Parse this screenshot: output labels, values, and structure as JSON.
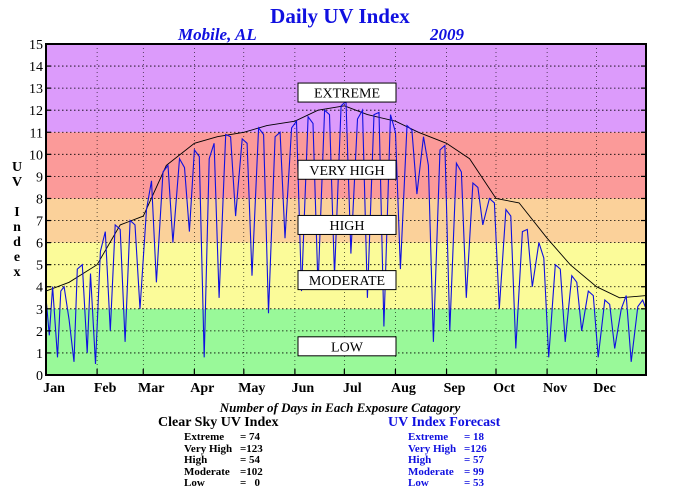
{
  "title": "Daily UV Index",
  "location": "Mobile, AL",
  "year": "2009",
  "y_axis_letters": [
    "U",
    "V",
    "",
    "I",
    "n",
    "d",
    "e",
    "x"
  ],
  "counts_title": "Number of Days in Each Exposure Catagory",
  "clear_sky": {
    "heading": "Clear Sky UV Index",
    "rows": [
      {
        "name": "Extreme",
        "value": "= 74"
      },
      {
        "name": "Very High",
        "value": "=123"
      },
      {
        "name": "High",
        "value": "= 54"
      },
      {
        "name": "Moderate",
        "value": "=102"
      },
      {
        "name": "Low",
        "value": "=   0"
      }
    ]
  },
  "forecast": {
    "heading": "UV Index Forecast",
    "rows": [
      {
        "name": "Extreme",
        "value": "= 18"
      },
      {
        "name": "Very High",
        "value": "=126"
      },
      {
        "name": "High",
        "value": "= 57"
      },
      {
        "name": "Moderate",
        "value": "= 99"
      },
      {
        "name": "Low",
        "value": "= 53"
      }
    ]
  },
  "colors": {
    "low": "#99f999",
    "moderate": "#fbfb99",
    "high": "#fbd19a",
    "very_high": "#fb9a99",
    "extreme": "#dc9bfb",
    "forecast_line": "#1010e0",
    "clear_line": "#000000"
  },
  "chart_data": {
    "type": "line",
    "ylim": [
      0,
      15
    ],
    "xlim": [
      1,
      365
    ],
    "yticks": [
      "0",
      "1",
      "2",
      "3",
      "4",
      "5",
      "6",
      "7",
      "8",
      "9",
      "10",
      "11",
      "12",
      "13",
      "14",
      "15"
    ],
    "months": [
      "Jan",
      "Feb",
      "Mar",
      "Apr",
      "May",
      "Jun",
      "Jul",
      "Aug",
      "Sep",
      "Oct",
      "Nov",
      "Dec"
    ],
    "month_start_days": [
      1,
      32,
      60,
      91,
      121,
      152,
      182,
      213,
      244,
      274,
      305,
      335
    ],
    "grid": true,
    "bands": [
      {
        "label": "LOW",
        "from": 0,
        "to": 3
      },
      {
        "label": "MODERATE",
        "from": 3,
        "to": 6
      },
      {
        "label": "HIGH",
        "from": 6,
        "to": 8
      },
      {
        "label": "VERY HIGH",
        "from": 8,
        "to": 11
      },
      {
        "label": "EXTREME",
        "from": 11,
        "to": 15
      }
    ],
    "band_label_y": {
      "EXTREME": 12.8,
      "VERY HIGH": 9.3,
      "HIGH": 6.8,
      "MODERATE": 4.3,
      "LOW": 1.3
    },
    "series": [
      {
        "key": "clear_sky",
        "x": [
          1,
          15,
          32,
          46,
          60,
          74,
          91,
          105,
          121,
          135,
          152,
          166,
          182,
          196,
          213,
          227,
          244,
          258,
          274,
          288,
          305,
          319,
          335,
          349,
          365
        ],
        "values": [
          3.8,
          4.2,
          5.0,
          6.8,
          7.2,
          9.5,
          10.5,
          10.8,
          11.0,
          11.3,
          11.5,
          12.0,
          12.2,
          11.8,
          11.5,
          11.0,
          10.5,
          9.8,
          8.0,
          7.8,
          6.2,
          5.0,
          4.0,
          3.5,
          3.6
        ]
      },
      {
        "key": "forecast",
        "x": [
          1,
          3,
          5,
          8,
          10,
          12,
          15,
          18,
          20,
          23,
          26,
          28,
          31,
          34,
          37,
          40,
          43,
          46,
          49,
          52,
          55,
          58,
          62,
          65,
          68,
          72,
          75,
          78,
          82,
          85,
          88,
          91,
          94,
          97,
          100,
          103,
          106,
          110,
          113,
          116,
          120,
          123,
          126,
          130,
          133,
          136,
          140,
          143,
          146,
          150,
          153,
          156,
          160,
          163,
          166,
          170,
          173,
          176,
          180,
          183,
          186,
          190,
          193,
          196,
          200,
          203,
          206,
          210,
          213,
          216,
          220,
          223,
          226,
          230,
          233,
          236,
          240,
          243,
          246,
          250,
          253,
          256,
          260,
          263,
          266,
          270,
          273,
          276,
          280,
          283,
          286,
          290,
          293,
          296,
          300,
          303,
          306,
          310,
          313,
          316,
          320,
          323,
          326,
          330,
          333,
          336,
          340,
          343,
          346,
          350,
          353,
          356,
          360,
          363,
          365
        ],
        "values": [
          3.5,
          1.8,
          4.0,
          0.8,
          3.8,
          4.0,
          2.5,
          0.6,
          4.8,
          5.0,
          1.0,
          4.6,
          0.5,
          5.6,
          6.5,
          2.0,
          6.8,
          6.6,
          1.5,
          7.0,
          6.8,
          3.0,
          7.5,
          8.8,
          4.2,
          9.2,
          9.5,
          6.0,
          9.8,
          9.4,
          6.5,
          10.2,
          9.9,
          0.8,
          9.8,
          10.5,
          3.5,
          10.9,
          10.8,
          7.2,
          10.7,
          10.5,
          4.5,
          11.2,
          10.9,
          2.8,
          10.8,
          11.0,
          6.2,
          11.2,
          11.5,
          3.8,
          11.7,
          11.4,
          4.0,
          12.0,
          11.8,
          4.5,
          12.2,
          12.4,
          5.5,
          11.6,
          12.0,
          3.5,
          11.8,
          11.9,
          2.2,
          11.8,
          11.0,
          4.8,
          11.3,
          11.1,
          8.2,
          10.8,
          9.5,
          1.5,
          10.2,
          10.4,
          2.0,
          9.6,
          9.2,
          3.5,
          8.7,
          8.5,
          6.8,
          8.0,
          7.8,
          3.0,
          7.5,
          7.2,
          1.2,
          6.5,
          6.6,
          4.0,
          6.0,
          5.3,
          0.8,
          5.0,
          4.8,
          1.5,
          4.5,
          4.2,
          2.0,
          3.8,
          3.6,
          0.8,
          3.4,
          3.2,
          1.2,
          3.0,
          3.6,
          0.6,
          3.1,
          3.4,
          3.0
        ]
      }
    ]
  }
}
